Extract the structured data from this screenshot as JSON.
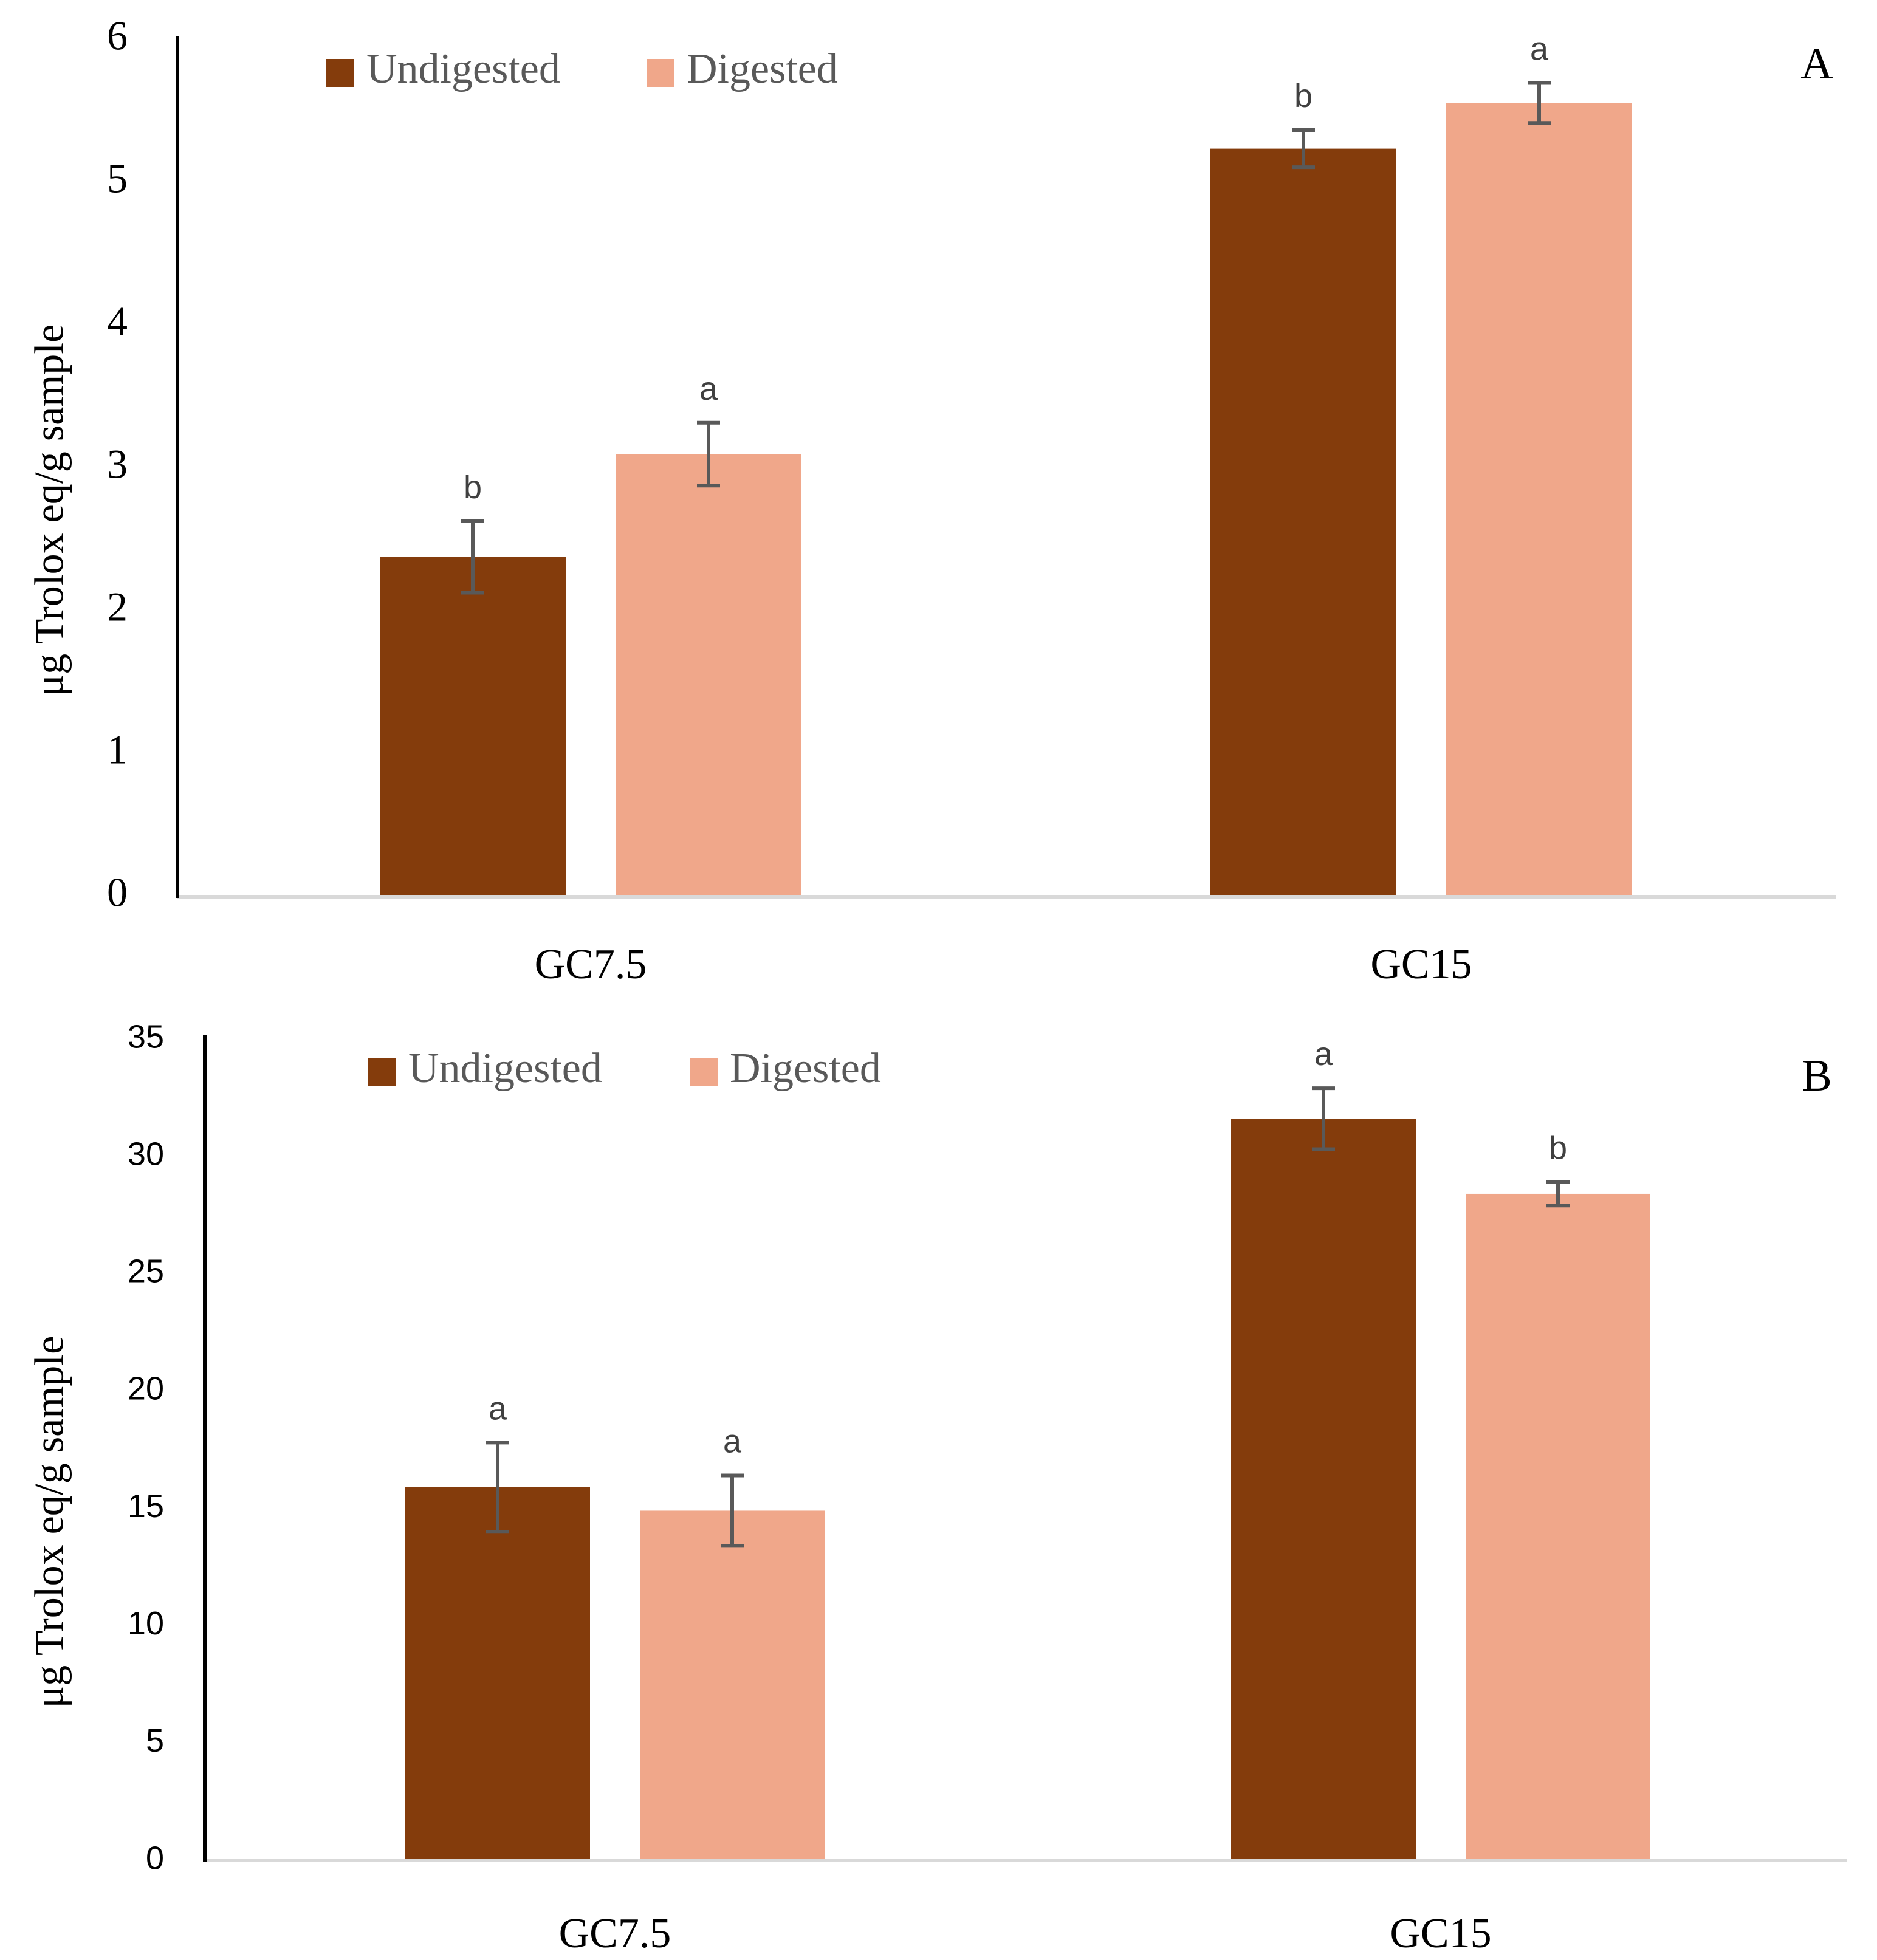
{
  "colors": {
    "undigested": "#843C0C",
    "digested": "#F0A78A",
    "axis_y": "#000000",
    "axis_x": "#D9D9D9",
    "errorbar": "#595959",
    "sig_letter": "#404040",
    "text": "#000000",
    "legend_text": "#595959"
  },
  "chart_data": [
    {
      "type": "bar",
      "panel_label": "A",
      "ylabel": "μg Trolox eq/g sample",
      "xlabel": "",
      "categories": [
        "GC7.5",
        "GC15"
      ],
      "ylim": [
        0,
        6
      ],
      "yticks": [
        0,
        1,
        2,
        3,
        4,
        5,
        6
      ],
      "legend": [
        "Undigested",
        "Digested"
      ],
      "legend_position": "top-left",
      "series": [
        {
          "name": "Undigested",
          "values": [
            2.38,
            5.24
          ],
          "errors": [
            0.25,
            0.13
          ],
          "letters": [
            "b",
            "b"
          ]
        },
        {
          "name": "Digested",
          "values": [
            3.1,
            5.56
          ],
          "errors": [
            0.22,
            0.14
          ],
          "letters": [
            "a",
            "a"
          ]
        }
      ]
    },
    {
      "type": "bar",
      "panel_label": "B",
      "ylabel": "μg Trolox eq/g sample",
      "xlabel": "",
      "categories": [
        "GC7.5",
        "GC15"
      ],
      "ylim": [
        0,
        35
      ],
      "yticks": [
        0,
        5,
        10,
        15,
        20,
        25,
        30,
        35
      ],
      "legend": [
        "Undigested",
        "Digested"
      ],
      "legend_position": "top-left",
      "series": [
        {
          "name": "Undigested",
          "values": [
            15.9,
            31.6
          ],
          "errors": [
            1.9,
            1.3
          ],
          "letters": [
            "a",
            "a"
          ]
        },
        {
          "name": "Digested",
          "values": [
            14.9,
            28.4
          ],
          "errors": [
            1.5,
            0.5
          ],
          "letters": [
            "a",
            "b"
          ]
        }
      ]
    }
  ]
}
